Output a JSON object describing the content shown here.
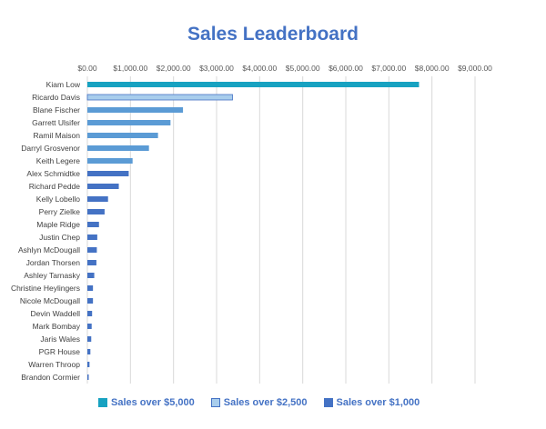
{
  "chart_data": {
    "type": "bar",
    "orientation": "horizontal",
    "title": "Sales Leaderboard",
    "xlabel": "",
    "ylabel": "",
    "xlim": [
      0,
      9000
    ],
    "x_ticks": [
      0,
      1000,
      2000,
      3000,
      4000,
      5000,
      6000,
      7000,
      8000,
      9000
    ],
    "x_tick_labels": [
      "$0.00",
      "$1,000.00",
      "$2,000.00",
      "$3,000.00",
      "$4,000.00",
      "$5,000.00",
      "$6,000.00",
      "$7,000.00",
      "$8,000.00",
      "$9,000.00"
    ],
    "x_axis_position": "top",
    "grid": true,
    "legend_position": "bottom",
    "categories": [
      "Kiam Low",
      "Ricardo Davis",
      "Blane Fischer",
      "Garrett Ulsifer",
      "Ramil Maison",
      "Darryl Grosvenor",
      "Keith Legere",
      "Alex Schmidtke",
      "Richard Pedde",
      "Kelly Lobello",
      "Perry Zielke",
      "Maple Ridge",
      "Justin Chep",
      "Ashlyn McDougall",
      "Jordan Thorsen",
      "Ashley Tarnasky",
      "Christine Heylingers",
      "Nicole McDougall",
      "Devin Waddell",
      "Mark Bombay",
      "Jaris Wales",
      "PGR House",
      "Warren Throop",
      "Brandon Cormier"
    ],
    "values": [
      7700,
      3370,
      2220,
      1930,
      1640,
      1430,
      1050,
      960,
      730,
      480,
      400,
      270,
      230,
      220,
      210,
      160,
      130,
      130,
      110,
      100,
      90,
      70,
      50,
      30
    ],
    "series": [
      {
        "name": "Sales over $5,000",
        "color": "#17a2c1",
        "tier": "over5000"
      },
      {
        "name": "Sales over $2,500",
        "color": "#a8cdec",
        "tier": "over2500"
      },
      {
        "name": "Sales over $1,000",
        "color": "#4472c4",
        "tier": "over1000"
      }
    ],
    "bar_tiers": [
      "over5000",
      "over2500",
      "over1000",
      "over1000",
      "over1000",
      "over1000",
      "over1000",
      "over1000",
      "over1000",
      "over1000",
      "over1000",
      "over1000",
      "over1000",
      "over1000",
      "over1000",
      "over1000",
      "over1000",
      "over1000",
      "over1000",
      "over1000",
      "over1000",
      "over1000",
      "over1000",
      "over1000"
    ]
  },
  "colors": {
    "title": "#4472c4",
    "gridline": "#d9d9d9",
    "tick_label": "#595959",
    "category_label": "#404040",
    "mid_blue_bar": "#5b9bd5",
    "dark_blue_bar": "#4472c4"
  }
}
